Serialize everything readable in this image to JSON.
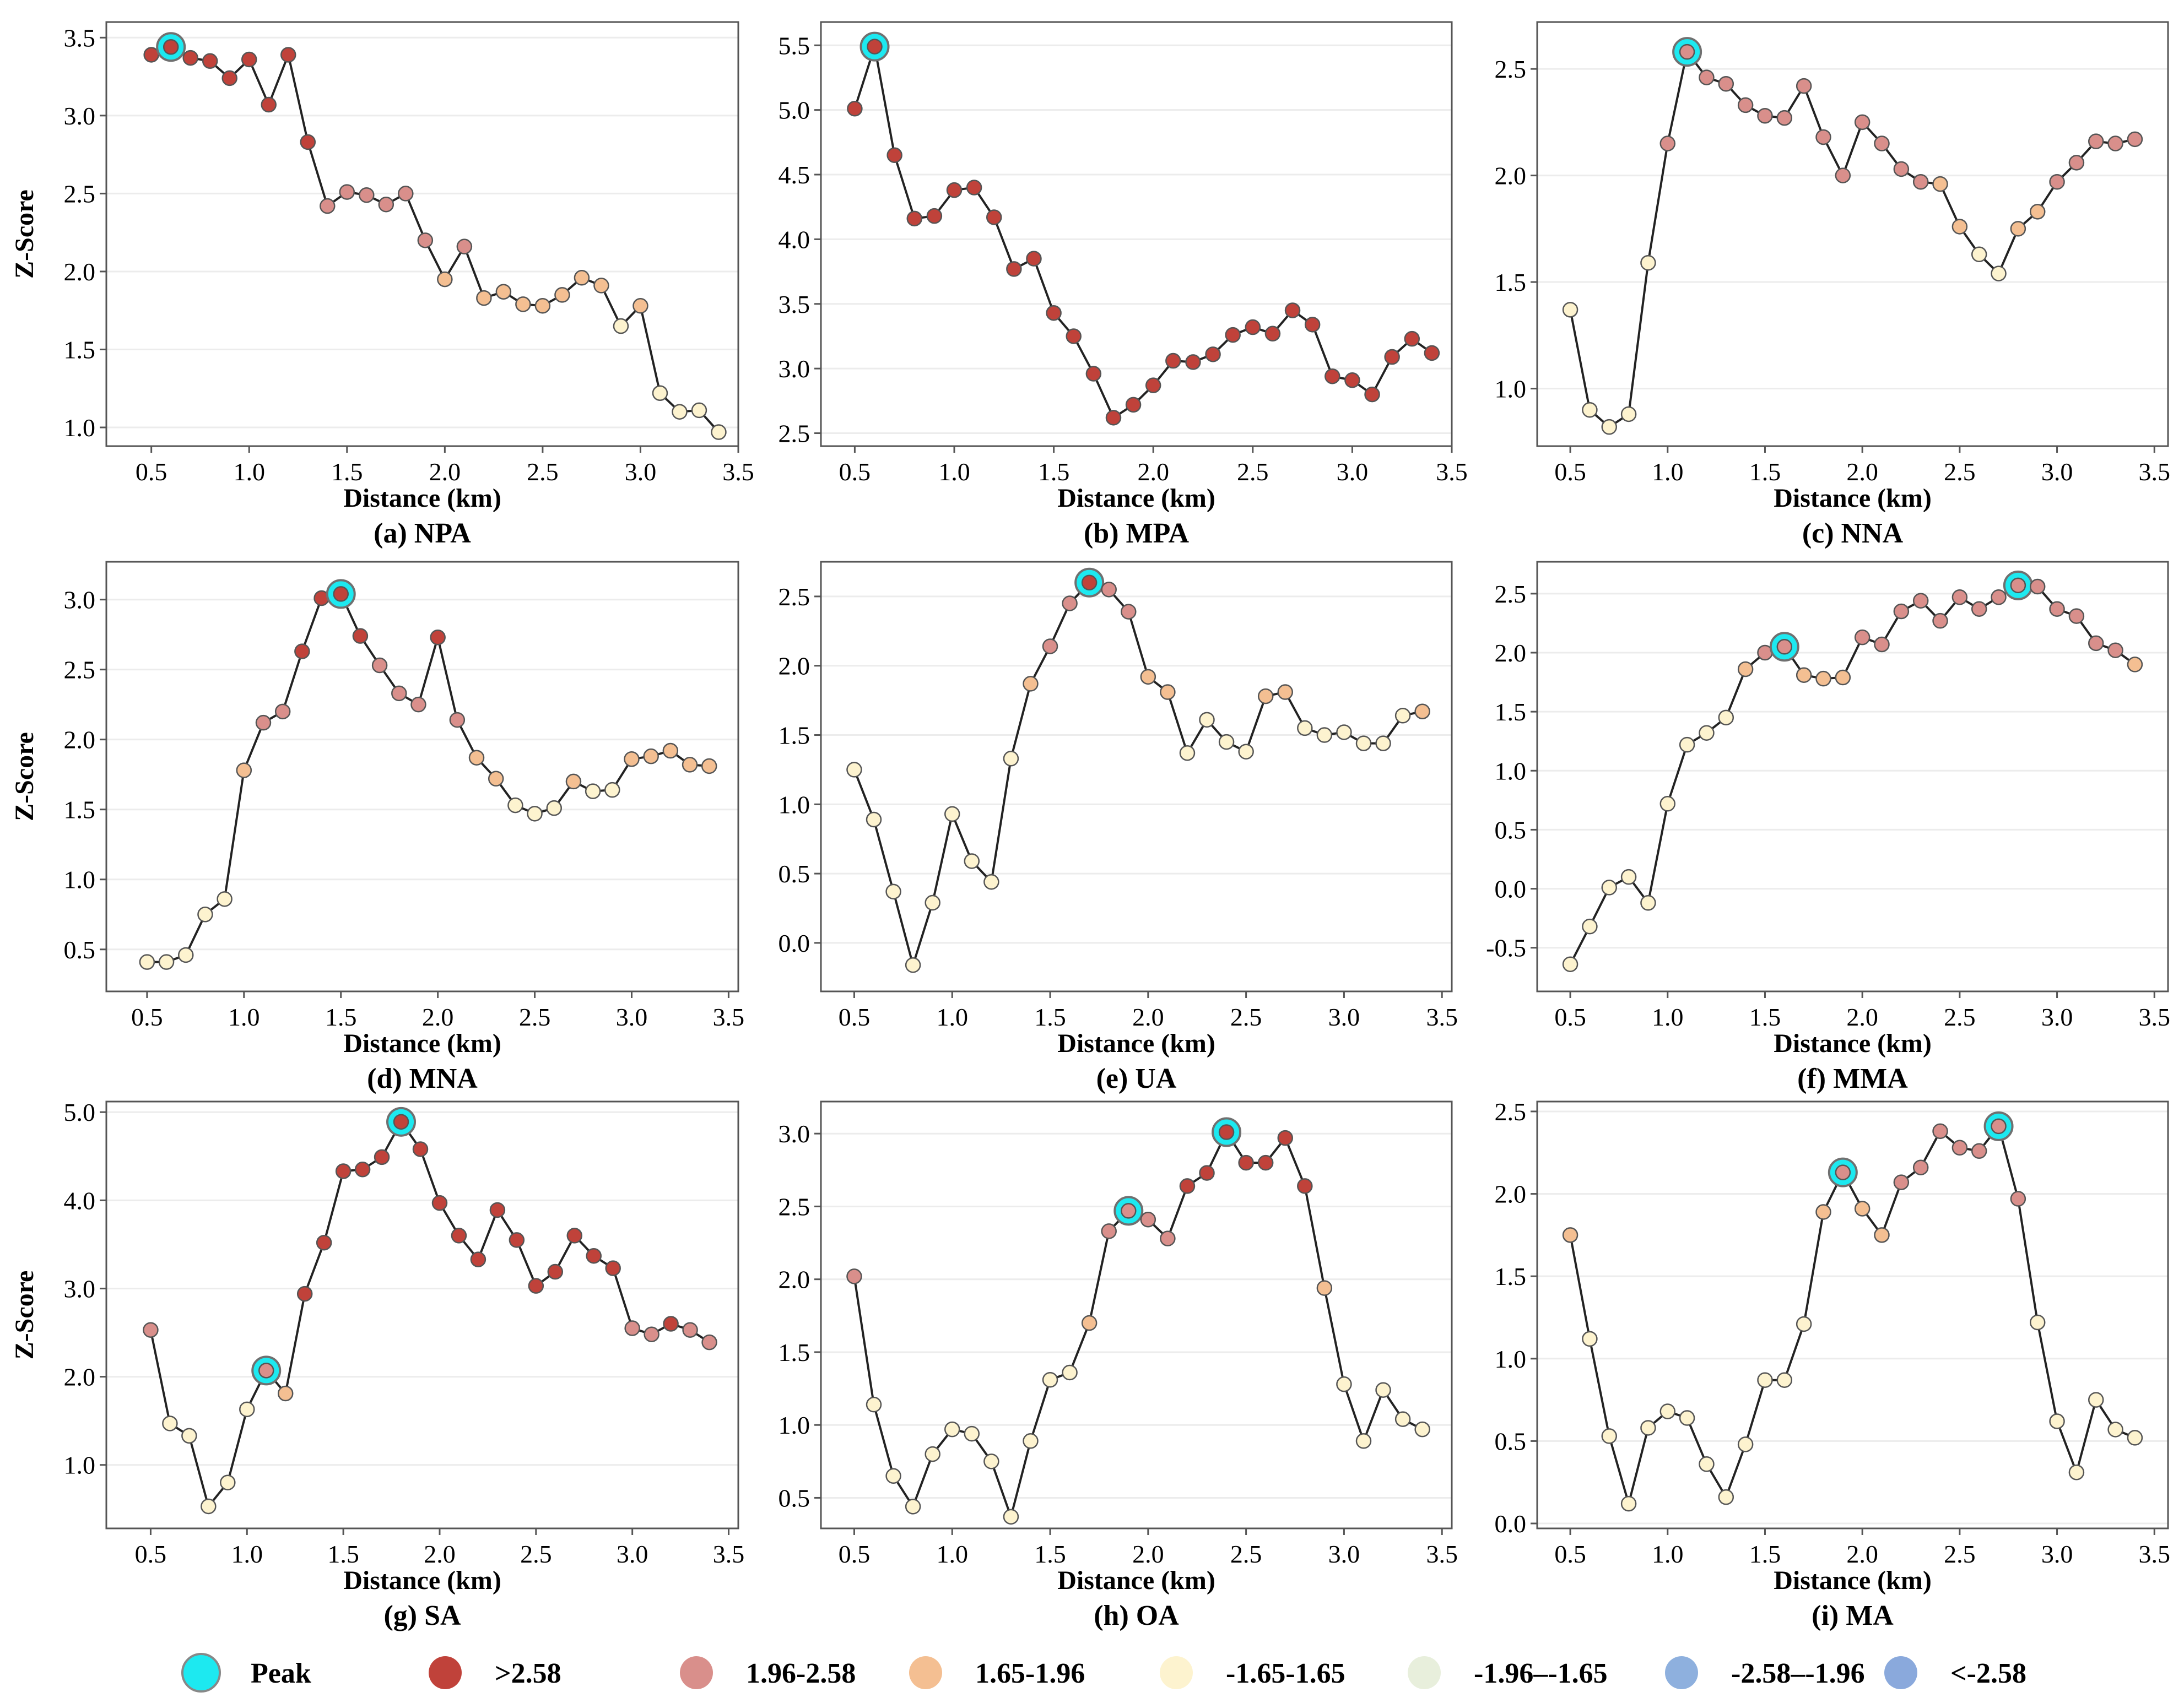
{
  "figure": {
    "legend": {
      "items": [
        {
          "key": "peak",
          "label": "Peak",
          "color": "#1de9f0"
        },
        {
          "key": "c1",
          "label": ">2.58",
          "color": "#c0423a"
        },
        {
          "key": "c2",
          "label": "1.96-2.58",
          "color": "#d98f8b"
        },
        {
          "key": "c3",
          "label": "1.65-1.96",
          "color": "#f4bf92"
        },
        {
          "key": "c4",
          "label": "-1.65-1.65",
          "color": "#fdf3cf"
        },
        {
          "key": "c5",
          "label": "-1.96–-1.65",
          "color": "#e8efdc"
        },
        {
          "key": "c6",
          "label": "-2.58–-1.96",
          "color": "#8eb0de"
        },
        {
          "key": "c7",
          "label": "<-2.58",
          "color": "#8aa9dc"
        }
      ]
    }
  },
  "chart_data": [
    {
      "id": "a",
      "type": "line",
      "caption": "(a) NPA",
      "xlabel": "Distance (km)",
      "ylabel": "Z-Score",
      "xlim": [
        0.27,
        3.5
      ],
      "ylim": [
        0.88,
        3.6
      ],
      "xticks": [
        "0.5",
        "1.0",
        "1.5",
        "2.0",
        "2.5",
        "3.0",
        "3.5"
      ],
      "yticks": [
        "1.0",
        "1.5",
        "2.0",
        "2.5",
        "3.0",
        "3.5"
      ],
      "x": [
        0.5,
        0.6,
        0.7,
        0.8,
        0.9,
        1.0,
        1.1,
        1.2,
        1.3,
        1.4,
        1.5,
        1.6,
        1.7,
        1.8,
        1.9,
        2.0,
        2.1,
        2.2,
        2.3,
        2.4,
        2.5,
        2.6,
        2.7,
        2.8,
        2.9,
        3.0,
        3.1,
        3.2,
        3.3,
        3.4
      ],
      "y": [
        3.39,
        3.44,
        3.37,
        3.35,
        3.24,
        3.36,
        3.07,
        3.39,
        2.83,
        2.42,
        2.51,
        2.49,
        2.43,
        2.5,
        2.2,
        1.95,
        2.16,
        1.83,
        1.87,
        1.79,
        1.78,
        1.85,
        1.96,
        1.91,
        1.65,
        1.78,
        1.22,
        1.1,
        1.11,
        0.97
      ],
      "peaks": [
        1
      ]
    },
    {
      "id": "b",
      "type": "line",
      "caption": "(b) MPA",
      "xlabel": "Distance (km)",
      "ylabel": "",
      "xlim": [
        0.33,
        3.5
      ],
      "ylim": [
        2.4,
        5.68
      ],
      "xticks": [
        "0.5",
        "1.0",
        "1.5",
        "2.0",
        "2.5",
        "3.0",
        "3.5"
      ],
      "yticks": [
        "2.5",
        "3.0",
        "3.5",
        "4.0",
        "4.5",
        "5.0",
        "5.5"
      ],
      "x": [
        0.5,
        0.6,
        0.7,
        0.8,
        0.9,
        1.0,
        1.1,
        1.2,
        1.3,
        1.4,
        1.5,
        1.6,
        1.7,
        1.8,
        1.9,
        2.0,
        2.1,
        2.2,
        2.3,
        2.4,
        2.5,
        2.6,
        2.7,
        2.8,
        2.9,
        3.0,
        3.1,
        3.2,
        3.3,
        3.4
      ],
      "y": [
        5.01,
        5.49,
        4.65,
        4.16,
        4.18,
        4.38,
        4.4,
        4.17,
        3.77,
        3.85,
        3.43,
        3.25,
        2.96,
        2.62,
        2.72,
        2.87,
        3.06,
        3.05,
        3.11,
        3.26,
        3.32,
        3.27,
        3.45,
        3.34,
        2.94,
        2.91,
        2.8,
        3.09,
        3.23,
        3.12
      ],
      "peaks": [
        1
      ]
    },
    {
      "id": "c",
      "type": "line",
      "caption": "(c) NNA",
      "xlabel": "Distance (km)",
      "ylabel": "",
      "xlim": [
        0.33,
        3.57
      ],
      "ylim": [
        0.73,
        2.72
      ],
      "xticks": [
        "0.5",
        "1.0",
        "1.5",
        "2.0",
        "2.5",
        "3.0",
        "3.5"
      ],
      "yticks": [
        "1.0",
        "1.5",
        "2.0",
        "2.5"
      ],
      "x": [
        0.5,
        0.6,
        0.7,
        0.8,
        0.9,
        1.0,
        1.1,
        1.2,
        1.3,
        1.4,
        1.5,
        1.6,
        1.7,
        1.8,
        1.9,
        2.0,
        2.1,
        2.2,
        2.3,
        2.4,
        2.5,
        2.6,
        2.7,
        2.8,
        2.9,
        3.0,
        3.1,
        3.2,
        3.3,
        3.4
      ],
      "y": [
        1.37,
        0.9,
        0.82,
        0.88,
        1.59,
        2.15,
        2.58,
        2.46,
        2.43,
        2.33,
        2.28,
        2.27,
        2.42,
        2.18,
        2.0,
        2.25,
        2.15,
        2.03,
        1.97,
        1.96,
        1.76,
        1.63,
        1.54,
        1.75,
        1.83,
        1.97,
        2.06,
        2.16,
        2.15,
        2.17
      ],
      "peaks": [
        6
      ]
    },
    {
      "id": "d",
      "type": "line",
      "caption": "(d) MNA",
      "xlabel": "Distance (km)",
      "ylabel": "Z-Score",
      "xlim": [
        0.29,
        3.55
      ],
      "ylim": [
        0.2,
        3.27
      ],
      "xticks": [
        "0.5",
        "1.0",
        "1.5",
        "2.0",
        "2.5",
        "3.0",
        "3.5"
      ],
      "yticks": [
        "0.5",
        "1.0",
        "1.5",
        "2.0",
        "2.5",
        "3.0"
      ],
      "x": [
        0.5,
        0.6,
        0.7,
        0.8,
        0.9,
        1.0,
        1.1,
        1.2,
        1.3,
        1.4,
        1.5,
        1.6,
        1.7,
        1.8,
        1.9,
        2.0,
        2.1,
        2.2,
        2.3,
        2.4,
        2.5,
        2.6,
        2.7,
        2.8,
        2.9,
        3.0,
        3.1,
        3.2,
        3.3,
        3.4
      ],
      "y": [
        0.41,
        0.41,
        0.46,
        0.75,
        0.86,
        1.78,
        2.12,
        2.2,
        2.63,
        3.01,
        3.04,
        2.74,
        2.53,
        2.33,
        2.25,
        2.73,
        2.14,
        1.87,
        1.72,
        1.53,
        1.47,
        1.51,
        1.7,
        1.63,
        1.64,
        1.86,
        1.88,
        1.92,
        1.82,
        1.81
      ],
      "peaks": [
        10
      ]
    },
    {
      "id": "e",
      "type": "line",
      "caption": "(e) UA",
      "xlabel": "Distance (km)",
      "ylabel": "",
      "xlim": [
        0.33,
        3.55
      ],
      "ylim": [
        -0.35,
        2.75
      ],
      "xticks": [
        "0.5",
        "1.0",
        "1.5",
        "2.0",
        "2.5",
        "3.0",
        "3.5"
      ],
      "yticks": [
        "0.0",
        "0.5",
        "1.0",
        "1.5",
        "2.0",
        "2.5"
      ],
      "x": [
        0.5,
        0.6,
        0.7,
        0.8,
        0.9,
        1.0,
        1.1,
        1.2,
        1.3,
        1.4,
        1.5,
        1.6,
        1.7,
        1.8,
        1.9,
        2.0,
        2.1,
        2.2,
        2.3,
        2.4,
        2.5,
        2.6,
        2.7,
        2.8,
        2.9,
        3.0,
        3.1,
        3.2,
        3.3,
        3.4
      ],
      "y": [
        1.25,
        0.89,
        0.37,
        -0.16,
        0.29,
        0.93,
        0.59,
        0.44,
        1.33,
        1.87,
        2.14,
        2.45,
        2.6,
        2.55,
        2.39,
        1.92,
        1.81,
        1.37,
        1.61,
        1.45,
        1.38,
        1.78,
        1.81,
        1.55,
        1.5,
        1.52,
        1.44,
        1.44,
        1.64,
        1.67
      ],
      "peaks": [
        12
      ]
    },
    {
      "id": "f",
      "type": "line",
      "caption": "(f) MMA",
      "xlabel": "Distance (km)",
      "ylabel": "",
      "xlim": [
        0.33,
        3.57
      ],
      "ylim": [
        -0.87,
        2.77
      ],
      "xticks": [
        "0.5",
        "1.0",
        "1.5",
        "2.0",
        "2.5",
        "3.0",
        "3.5"
      ],
      "yticks": [
        "-0.5",
        "0.0",
        "0.5",
        "1.0",
        "1.5",
        "2.0",
        "2.5"
      ],
      "x": [
        0.5,
        0.6,
        0.7,
        0.8,
        0.9,
        1.0,
        1.1,
        1.2,
        1.3,
        1.4,
        1.5,
        1.6,
        1.7,
        1.8,
        1.9,
        2.0,
        2.1,
        2.2,
        2.3,
        2.4,
        2.5,
        2.6,
        2.7,
        2.8,
        2.9,
        3.0,
        3.1,
        3.2,
        3.3,
        3.4
      ],
      "y": [
        -0.64,
        -0.32,
        0.01,
        0.1,
        -0.12,
        0.72,
        1.22,
        1.32,
        1.45,
        1.86,
        2.0,
        2.05,
        1.81,
        1.78,
        1.79,
        2.13,
        2.07,
        2.35,
        2.44,
        2.27,
        2.47,
        2.37,
        2.47,
        2.57,
        2.56,
        2.37,
        2.31,
        2.08,
        2.02,
        1.9
      ],
      "peaks": [
        11,
        23
      ]
    },
    {
      "id": "g",
      "type": "line",
      "caption": "(g) SA",
      "xlabel": "Distance (km)",
      "ylabel": "Z-Score",
      "xlim": [
        0.27,
        3.55
      ],
      "ylim": [
        0.28,
        5.12
      ],
      "xticks": [
        "0.5",
        "1.0",
        "1.5",
        "2.0",
        "2.5",
        "3.0",
        "3.5"
      ],
      "yticks": [
        "1.0",
        "2.0",
        "3.0",
        "4.0",
        "5.0"
      ],
      "x": [
        0.5,
        0.6,
        0.7,
        0.8,
        0.9,
        1.0,
        1.1,
        1.2,
        1.3,
        1.4,
        1.5,
        1.6,
        1.7,
        1.8,
        1.9,
        2.0,
        2.1,
        2.2,
        2.3,
        2.4,
        2.5,
        2.6,
        2.7,
        2.8,
        2.9,
        3.0,
        3.1,
        3.2,
        3.3,
        3.4
      ],
      "y": [
        2.53,
        1.47,
        1.33,
        0.53,
        0.8,
        1.63,
        2.07,
        1.81,
        2.94,
        3.52,
        4.33,
        4.35,
        4.49,
        4.89,
        4.58,
        3.97,
        3.6,
        3.33,
        3.89,
        3.55,
        3.03,
        3.19,
        3.6,
        3.37,
        3.23,
        2.55,
        2.48,
        2.6,
        2.53,
        2.39
      ],
      "peaks": [
        6,
        13
      ]
    },
    {
      "id": "h",
      "type": "line",
      "caption": "(h) OA",
      "xlabel": "Distance (km)",
      "ylabel": "",
      "xlim": [
        0.33,
        3.55
      ],
      "ylim": [
        0.29,
        3.22
      ],
      "xticks": [
        "0.5",
        "1.0",
        "1.5",
        "2.0",
        "2.5",
        "3.0",
        "3.5"
      ],
      "yticks": [
        "0.5",
        "1.0",
        "1.5",
        "2.0",
        "2.5",
        "3.0"
      ],
      "x": [
        0.5,
        0.6,
        0.7,
        0.8,
        0.9,
        1.0,
        1.1,
        1.2,
        1.3,
        1.4,
        1.5,
        1.6,
        1.7,
        1.8,
        1.9,
        2.0,
        2.1,
        2.2,
        2.3,
        2.4,
        2.5,
        2.6,
        2.7,
        2.8,
        2.9,
        3.0,
        3.1,
        3.2,
        3.3,
        3.4
      ],
      "y": [
        2.02,
        1.14,
        0.65,
        0.44,
        0.8,
        0.97,
        0.94,
        0.75,
        0.37,
        0.89,
        1.31,
        1.36,
        1.7,
        2.33,
        2.47,
        2.41,
        2.28,
        2.64,
        2.73,
        3.01,
        2.8,
        2.8,
        2.97,
        2.64,
        1.94,
        1.28,
        0.89,
        1.24,
        1.04,
        0.97
      ],
      "peaks": [
        14,
        19
      ]
    },
    {
      "id": "i",
      "type": "line",
      "caption": "(i) MA",
      "xlabel": "Distance (km)",
      "ylabel": "",
      "xlim": [
        0.33,
        3.57
      ],
      "ylim": [
        -0.03,
        2.56
      ],
      "xticks": [
        "0.5",
        "1.0",
        "1.5",
        "2.0",
        "2.5",
        "3.0",
        "3.5"
      ],
      "yticks": [
        "0.0",
        "0.5",
        "1.0",
        "1.5",
        "2.0",
        "2.5"
      ],
      "x": [
        0.5,
        0.6,
        0.7,
        0.8,
        0.9,
        1.0,
        1.1,
        1.2,
        1.3,
        1.4,
        1.5,
        1.6,
        1.7,
        1.8,
        1.9,
        2.0,
        2.1,
        2.2,
        2.3,
        2.4,
        2.5,
        2.6,
        2.7,
        2.8,
        2.9,
        3.0,
        3.1,
        3.2,
        3.3,
        3.4
      ],
      "y": [
        1.75,
        1.12,
        0.53,
        0.12,
        0.58,
        0.68,
        0.64,
        0.36,
        0.16,
        0.48,
        0.87,
        0.87,
        1.21,
        1.89,
        2.13,
        1.91,
        1.75,
        2.07,
        2.16,
        2.38,
        2.28,
        2.26,
        2.41,
        1.97,
        1.22,
        0.62,
        0.31,
        0.75,
        0.57,
        0.52
      ],
      "peaks": [
        14,
        22
      ]
    }
  ]
}
